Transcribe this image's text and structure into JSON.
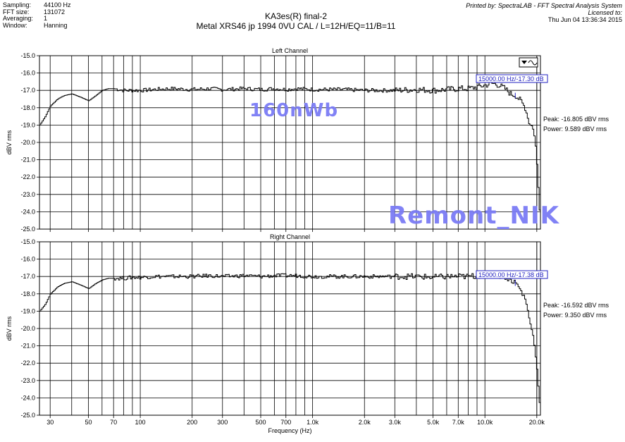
{
  "header": {
    "info": [
      {
        "key": "Sampling:",
        "value": "44100 Hz"
      },
      {
        "key": "FFT size:",
        "value": "131072"
      },
      {
        "key": "Averaging:",
        "value": "1"
      },
      {
        "key": "Window:",
        "value": "Hanning"
      }
    ],
    "title_line1": "KA3es(R)  final-2",
    "title_line2": "Metal XRS46 jp 1994  0VU CAL / L=12H/EQ=11/B=11",
    "printed_by": "Printed by: SpectraLAB - FFT Spectral Analysis System",
    "licensed_to": "Licensed to:",
    "date": "Thu Jun 04 13:36:34 2015"
  },
  "watermarks": {
    "upper": "160nWb",
    "lower": "Remont_NIK"
  },
  "colors": {
    "trace": "#000000",
    "grid": "#000000",
    "cursor": "#2020c0",
    "watermark": "#7b7cf5"
  },
  "chart_data": [
    {
      "type": "line",
      "title": "Left Channel",
      "ylabel": "dBV rms",
      "xlabel": "",
      "xscale": "log",
      "xlim": [
        26,
        21000
      ],
      "ylim": [
        -25.0,
        -15.0
      ],
      "y_ticks": [
        "-15.0",
        "-16.0",
        "-17.0",
        "-18.0",
        "-19.0",
        "-20.0",
        "-21.0",
        "-22.0",
        "-23.0",
        "-24.0",
        "-25.0"
      ],
      "grid": true,
      "cursor_label": "15000.00 Hz/-17.30 dB",
      "peak": "Peak: -16.805 dBV rms",
      "power": "Power: 9.589 dBV rms",
      "x": [
        26,
        28,
        30,
        33,
        36,
        40,
        45,
        50,
        55,
        60,
        65,
        70,
        80,
        90,
        100,
        120,
        150,
        200,
        250,
        300,
        400,
        500,
        600,
        700,
        800,
        1000,
        1500,
        2000,
        3000,
        4000,
        5000,
        6000,
        7000,
        8000,
        9000,
        10000,
        11000,
        12000,
        13000,
        14000,
        15000,
        16000,
        17000,
        17500,
        18000,
        18500,
        19000,
        19500,
        20000,
        20500,
        21000
      ],
      "y": [
        -19.0,
        -18.5,
        -17.9,
        -17.5,
        -17.3,
        -17.2,
        -17.4,
        -17.6,
        -17.3,
        -17.0,
        -16.9,
        -16.9,
        -17.0,
        -17.0,
        -17.0,
        -16.95,
        -16.9,
        -16.95,
        -16.9,
        -16.95,
        -16.9,
        -16.95,
        -16.9,
        -16.95,
        -16.9,
        -16.95,
        -16.95,
        -17.0,
        -17.0,
        -16.95,
        -17.0,
        -16.95,
        -16.9,
        -16.9,
        -16.8,
        -16.7,
        -16.6,
        -16.7,
        -16.9,
        -17.2,
        -17.3,
        -17.6,
        -18.0,
        -18.5,
        -19.0,
        -19.0,
        -19.3,
        -20.0,
        -21.5,
        -23.5,
        -25.0
      ]
    },
    {
      "type": "line",
      "title": "Right Channel",
      "ylabel": "dBV rms",
      "xlabel": "Frequency (Hz)",
      "xscale": "log",
      "xlim": [
        26,
        21000
      ],
      "ylim": [
        -25.0,
        -15.0
      ],
      "y_ticks": [
        "-15.0",
        "-16.0",
        "-17.0",
        "-18.0",
        "-19.0",
        "-20.0",
        "-21.0",
        "-22.0",
        "-23.0",
        "-24.0",
        "-25.0"
      ],
      "x_ticks": [
        "30",
        "50",
        "70",
        "100",
        "200",
        "300",
        "500",
        "700",
        "1.0k",
        "2.0k",
        "3.0k",
        "5.0k",
        "7.0k",
        "10.0k",
        "20.0k"
      ],
      "x_tick_values": [
        30,
        50,
        70,
        100,
        200,
        300,
        500,
        700,
        1000,
        2000,
        3000,
        5000,
        7000,
        10000,
        20000
      ],
      "grid": true,
      "cursor_label": "15000.00 Hz/-17.38 dB",
      "peak": "Peak: -16.592 dBV rms",
      "power": "Power: 9.350 dBV rms",
      "x": [
        26,
        28,
        30,
        33,
        36,
        40,
        45,
        50,
        55,
        60,
        65,
        70,
        80,
        90,
        100,
        120,
        150,
        200,
        250,
        300,
        400,
        500,
        600,
        700,
        800,
        1000,
        1500,
        2000,
        3000,
        4000,
        5000,
        6000,
        7000,
        8000,
        9000,
        10000,
        11000,
        12000,
        13000,
        14000,
        15000,
        16000,
        17000,
        17500,
        18000,
        18500,
        19000,
        19500,
        20000,
        20500,
        21000
      ],
      "y": [
        -19.0,
        -18.6,
        -18.0,
        -17.6,
        -17.4,
        -17.3,
        -17.5,
        -17.7,
        -17.4,
        -17.2,
        -17.1,
        -17.1,
        -17.1,
        -17.05,
        -17.05,
        -17.0,
        -17.0,
        -17.0,
        -16.95,
        -17.0,
        -16.95,
        -17.0,
        -16.95,
        -16.95,
        -16.95,
        -17.0,
        -17.0,
        -17.0,
        -17.0,
        -17.0,
        -17.05,
        -17.0,
        -17.0,
        -17.0,
        -16.95,
        -16.95,
        -16.9,
        -16.95,
        -17.0,
        -17.2,
        -17.35,
        -17.8,
        -18.3,
        -18.8,
        -19.5,
        -20.0,
        -20.5,
        -21.5,
        -22.5,
        -24.0,
        -25.0
      ]
    }
  ]
}
